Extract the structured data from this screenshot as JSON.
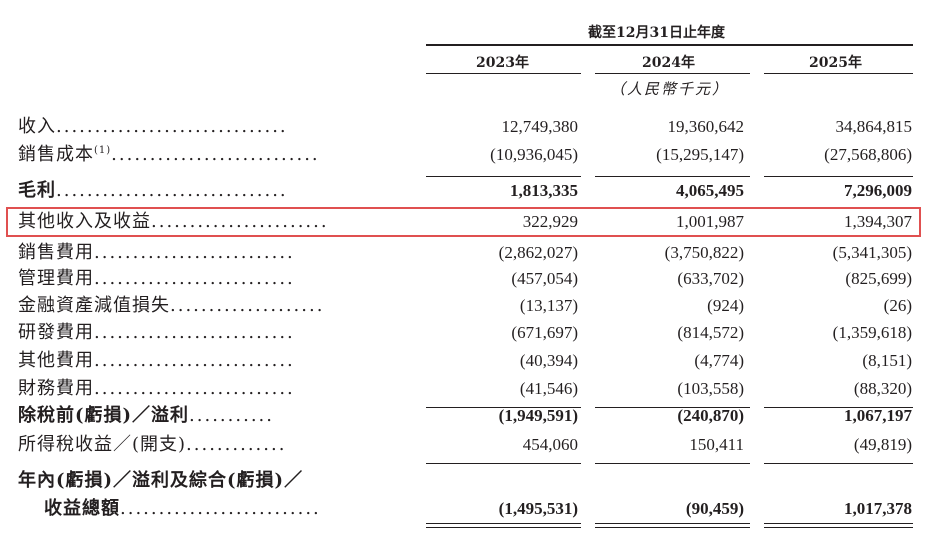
{
  "header": {
    "period_title": "截至12月31日止年度",
    "years": [
      "2023年",
      "2024年",
      "2025年"
    ],
    "unit": "（人民幣千元）"
  },
  "rows": [
    {
      "label": "收入",
      "note": "",
      "dots": "..............................",
      "bold": false,
      "values": [
        "12,749,380",
        "19,360,642",
        "34,864,815"
      ]
    },
    {
      "label": "銷售成本",
      "note": "(1)",
      "dots": "...........................",
      "bold": false,
      "values": [
        "(10,936,045)",
        "(15,295,147)",
        "(27,568,806)"
      ]
    },
    {
      "label": "毛利",
      "note": "",
      "dots": "..............................",
      "bold": true,
      "values": [
        "1,813,335",
        "4,065,495",
        "7,296,009"
      ]
    },
    {
      "label": "其他收入及收益",
      "note": "",
      "dots": ".......................",
      "bold": false,
      "values": [
        "322,929",
        "1,001,987",
        "1,394,307"
      ]
    },
    {
      "label": "銷售費用",
      "note": "",
      "dots": "..........................",
      "bold": false,
      "values": [
        "(2,862,027)",
        "(3,750,822)",
        "(5,341,305)"
      ]
    },
    {
      "label": "管理費用",
      "note": "",
      "dots": "..........................",
      "bold": false,
      "values": [
        "(457,054)",
        "(633,702)",
        "(825,699)"
      ]
    },
    {
      "label": "金融資產減值損失",
      "note": "",
      "dots": "....................",
      "bold": false,
      "values": [
        "(13,137)",
        "(924)",
        "(26)"
      ]
    },
    {
      "label": "研發費用",
      "note": "",
      "dots": "..........................",
      "bold": false,
      "values": [
        "(671,697)",
        "(814,572)",
        "(1,359,618)"
      ]
    },
    {
      "label": "其他費用",
      "note": "",
      "dots": "..........................",
      "bold": false,
      "values": [
        "(40,394)",
        "(4,774)",
        "(8,151)"
      ]
    },
    {
      "label": "財務費用",
      "note": "",
      "dots": "..........................",
      "bold": false,
      "values": [
        "(41,546)",
        "(103,558)",
        "(88,320)"
      ]
    },
    {
      "label": "除稅前(虧損)／溢利",
      "note": "",
      "dots": "...........",
      "bold": true,
      "values": [
        "(1,949,591)",
        "(240,870)",
        "1,067,197"
      ]
    },
    {
      "label": "所得稅收益／(開支)",
      "note": "",
      "dots": ".............",
      "bold": false,
      "values": [
        "454,060",
        "150,411",
        "(49,819)"
      ]
    }
  ],
  "total": {
    "label_line1": "年內(虧損)／溢利及綜合(虧損)／",
    "label_line2": "收益總額",
    "dots": "..........................",
    "values": [
      "(1,495,531)",
      "(90,459)",
      "1,017,378"
    ]
  }
}
